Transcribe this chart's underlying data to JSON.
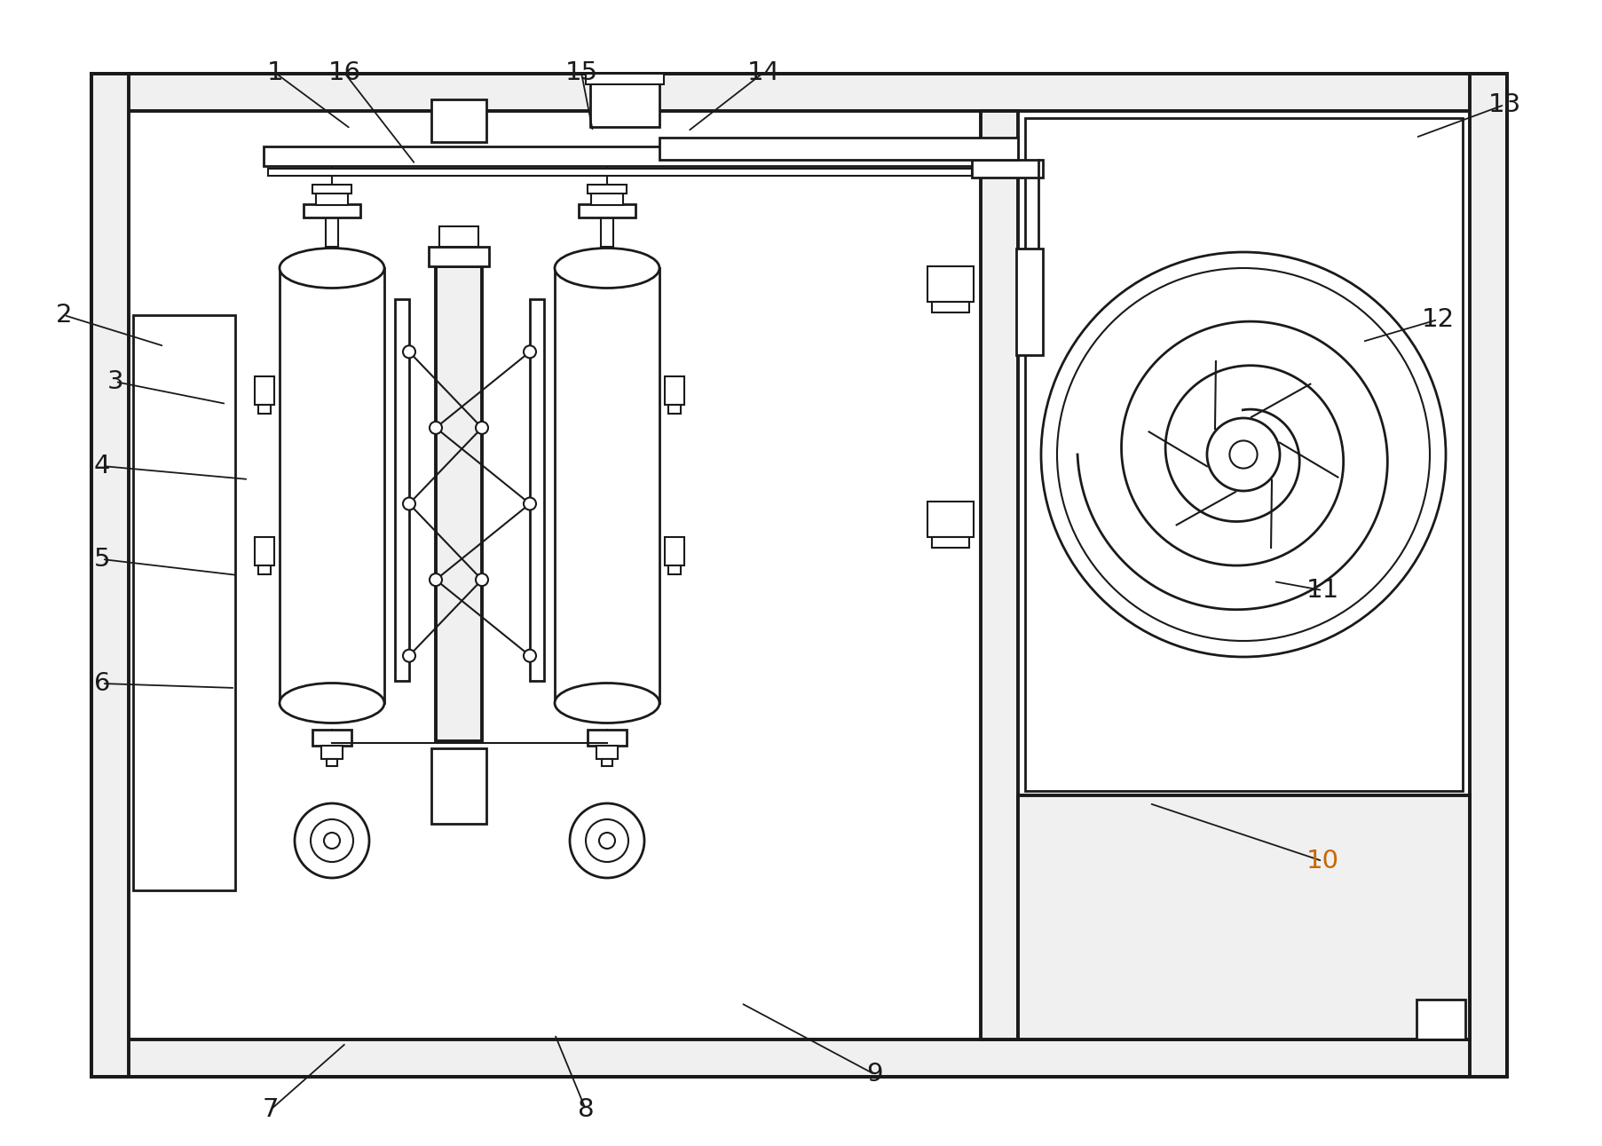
{
  "bg_color": "#ffffff",
  "line_color": "#1a1a1a",
  "hatch_color": "#444444",
  "figsize": [
    18.06,
    12.91
  ],
  "dpi": 100,
  "orange": "#CC6600",
  "labels": [
    [
      "1",
      310,
      82,
      395,
      145
    ],
    [
      "2",
      72,
      355,
      185,
      390
    ],
    [
      "3",
      130,
      430,
      255,
      455
    ],
    [
      "4",
      115,
      525,
      280,
      540
    ],
    [
      "5",
      115,
      630,
      268,
      648
    ],
    [
      "6",
      115,
      770,
      265,
      775
    ],
    [
      "7",
      305,
      1250,
      390,
      1175
    ],
    [
      "8",
      660,
      1250,
      625,
      1165
    ],
    [
      "9",
      985,
      1210,
      835,
      1130
    ],
    [
      "10",
      1490,
      970,
      1295,
      905
    ],
    [
      "11",
      1490,
      665,
      1435,
      655
    ],
    [
      "12",
      1620,
      360,
      1535,
      385
    ],
    [
      "13",
      1695,
      118,
      1595,
      155
    ],
    [
      "14",
      860,
      82,
      775,
      148
    ],
    [
      "15",
      655,
      82,
      668,
      148
    ],
    [
      "16",
      388,
      82,
      468,
      185
    ]
  ]
}
